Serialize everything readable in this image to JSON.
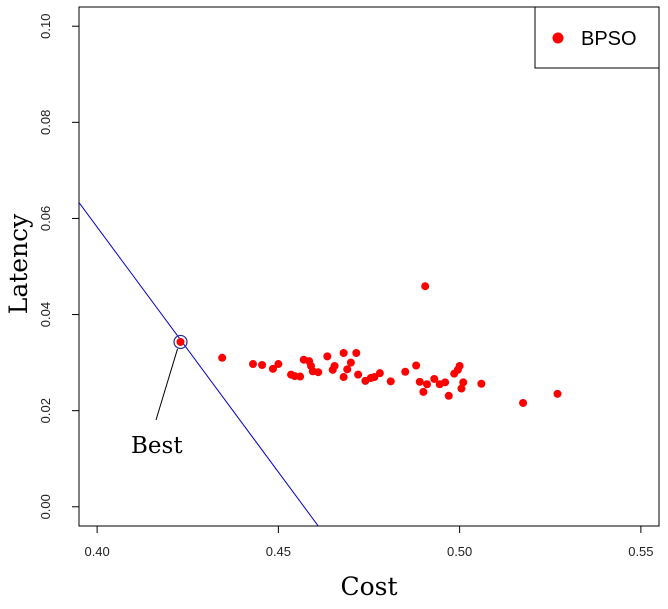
{
  "chart_data": {
    "type": "scatter",
    "title": "",
    "xlabel": "Cost",
    "ylabel": "Latency",
    "xlim": [
      0.395,
      0.555
    ],
    "ylim": [
      -0.004,
      0.104
    ],
    "xticks": [
      "0.40",
      "0.45",
      "0.50",
      "0.55"
    ],
    "xtick_values": [
      0.4,
      0.45,
      0.5,
      0.55
    ],
    "yticks": [
      "0.00",
      "0.02",
      "0.04",
      "0.06",
      "0.08",
      "0.10"
    ],
    "ytick_values": [
      0.0,
      0.02,
      0.04,
      0.06,
      0.08,
      0.1
    ],
    "grid": false,
    "legend": {
      "position": "top-right",
      "entries": [
        {
          "label": "BPSO",
          "color": "#ff0000"
        }
      ]
    },
    "series": [
      {
        "name": "BPSO",
        "color": "#ff0000",
        "points": [
          [
            0.423,
            0.0343
          ],
          [
            0.4345,
            0.031
          ],
          [
            0.443,
            0.0297
          ],
          [
            0.4455,
            0.0295
          ],
          [
            0.4485,
            0.0287
          ],
          [
            0.45,
            0.0297
          ],
          [
            0.4535,
            0.0275
          ],
          [
            0.4545,
            0.0272
          ],
          [
            0.456,
            0.0271
          ],
          [
            0.457,
            0.0306
          ],
          [
            0.4585,
            0.0303
          ],
          [
            0.459,
            0.0293
          ],
          [
            0.4595,
            0.0282
          ],
          [
            0.461,
            0.028
          ],
          [
            0.4635,
            0.0313
          ],
          [
            0.465,
            0.0285
          ],
          [
            0.4655,
            0.0293
          ],
          [
            0.468,
            0.032
          ],
          [
            0.468,
            0.027
          ],
          [
            0.469,
            0.0286
          ],
          [
            0.47,
            0.03
          ],
          [
            0.4715,
            0.032
          ],
          [
            0.472,
            0.0275
          ],
          [
            0.474,
            0.0262
          ],
          [
            0.4755,
            0.0268
          ],
          [
            0.4765,
            0.027
          ],
          [
            0.478,
            0.0278
          ],
          [
            0.481,
            0.0261
          ],
          [
            0.485,
            0.0281
          ],
          [
            0.488,
            0.0294
          ],
          [
            0.489,
            0.026
          ],
          [
            0.49,
            0.0239
          ],
          [
            0.4905,
            0.0459
          ],
          [
            0.491,
            0.0255
          ],
          [
            0.493,
            0.0266
          ],
          [
            0.4945,
            0.0255
          ],
          [
            0.496,
            0.0259
          ],
          [
            0.497,
            0.0231
          ],
          [
            0.4985,
            0.0277
          ],
          [
            0.4995,
            0.0285
          ],
          [
            0.5,
            0.0293
          ],
          [
            0.5005,
            0.0246
          ],
          [
            0.501,
            0.0259
          ],
          [
            0.506,
            0.0256
          ],
          [
            0.5175,
            0.0216
          ],
          [
            0.527,
            0.0235
          ]
        ]
      }
    ],
    "reference_line": {
      "color": "#0000cc",
      "points": [
        [
          0.395,
          0.0633
        ],
        [
          0.461,
          -0.004
        ]
      ]
    },
    "annotations": [
      {
        "text": "Best",
        "point": [
          0.423,
          0.0343
        ]
      }
    ]
  }
}
